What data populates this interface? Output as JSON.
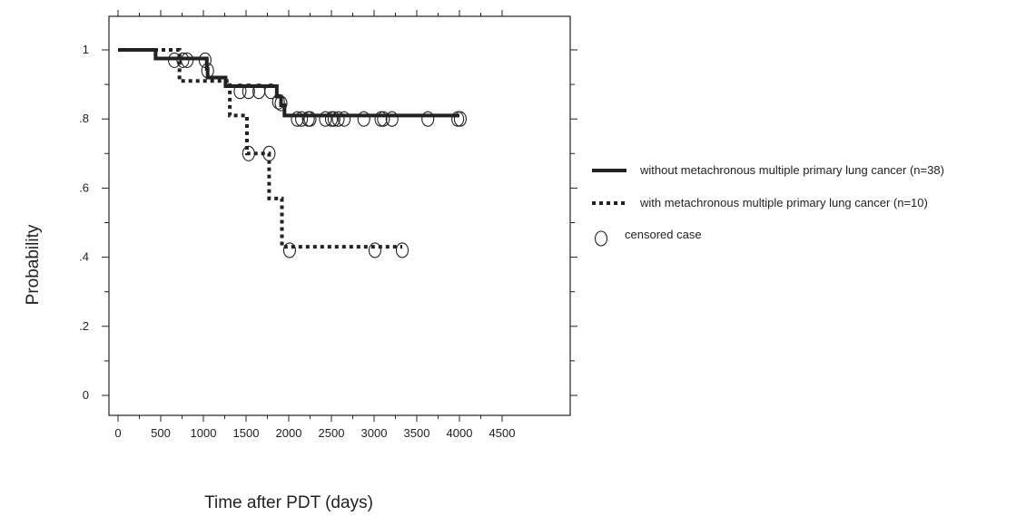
{
  "chart_data": {
    "type": "line",
    "subtype": "kaplan-meier step",
    "xlabel": "Time after PDT (days)",
    "ylabel": "Probability",
    "xlim": [
      0,
      4500
    ],
    "ylim": [
      0,
      1
    ],
    "x_ticks": [
      {
        "value": 0,
        "label": "0"
      },
      {
        "value": 500,
        "label": "500"
      },
      {
        "value": 1000,
        "label": "1000"
      },
      {
        "value": 1500,
        "label": "1500"
      },
      {
        "value": 2000,
        "label": "2000"
      },
      {
        "value": 2500,
        "label": "2500"
      },
      {
        "value": 3000,
        "label": "3000"
      },
      {
        "value": 3500,
        "label": "3500"
      },
      {
        "value": 4000,
        "label": "4000"
      },
      {
        "value": 4500,
        "label": "4500"
      }
    ],
    "y_ticks": [
      {
        "value": 0,
        "label": "0"
      },
      {
        "value": 0.2,
        "label": ".2"
      },
      {
        "value": 0.4,
        "label": ".4"
      },
      {
        "value": 0.6,
        "label": ".6"
      },
      {
        "value": 0.8,
        "label": ".8"
      },
      {
        "value": 1,
        "label": "1"
      }
    ],
    "grid": false,
    "legend_position": "right",
    "series": [
      {
        "name": "without metachronous multiple primary lung cancer (n=38)",
        "style": "solid",
        "color": "#222222",
        "steps": [
          [
            0,
            1.0
          ],
          [
            440,
            0.975
          ],
          [
            1040,
            0.945
          ],
          [
            1050,
            0.92
          ],
          [
            1260,
            0.895
          ],
          [
            1860,
            0.865
          ],
          [
            1910,
            0.84
          ],
          [
            1950,
            0.81
          ],
          [
            4000,
            0.81
          ]
        ],
        "censored": [
          [
            660,
            0.97
          ],
          [
            760,
            0.97
          ],
          [
            810,
            0.97
          ],
          [
            1020,
            0.97
          ],
          [
            1050,
            0.94
          ],
          [
            1430,
            0.88
          ],
          [
            1530,
            0.88
          ],
          [
            1650,
            0.88
          ],
          [
            1790,
            0.88
          ],
          [
            1880,
            0.85
          ],
          [
            1910,
            0.845
          ],
          [
            2100,
            0.8
          ],
          [
            2150,
            0.8
          ],
          [
            2230,
            0.8
          ],
          [
            2250,
            0.8
          ],
          [
            2430,
            0.8
          ],
          [
            2500,
            0.8
          ],
          [
            2530,
            0.8
          ],
          [
            2580,
            0.8
          ],
          [
            2650,
            0.8
          ],
          [
            2880,
            0.8
          ],
          [
            3080,
            0.8
          ],
          [
            3110,
            0.8
          ],
          [
            3210,
            0.8
          ],
          [
            3630,
            0.8
          ],
          [
            3980,
            0.8
          ],
          [
            4010,
            0.8
          ]
        ]
      },
      {
        "name": "with metachronous multiple primary lung cancer (n=10)",
        "style": "dotted",
        "color": "#222222",
        "steps": [
          [
            0,
            1.0
          ],
          [
            720,
            0.91
          ],
          [
            1310,
            0.81
          ],
          [
            1510,
            0.7
          ],
          [
            1770,
            0.57
          ],
          [
            1920,
            0.43
          ],
          [
            3330,
            0.43
          ]
        ],
        "censored": [
          [
            1530,
            0.7
          ],
          [
            1770,
            0.7
          ],
          [
            2010,
            0.42
          ],
          [
            3010,
            0.42
          ],
          [
            3330,
            0.42
          ]
        ]
      }
    ],
    "legend_censored": "censored case"
  }
}
